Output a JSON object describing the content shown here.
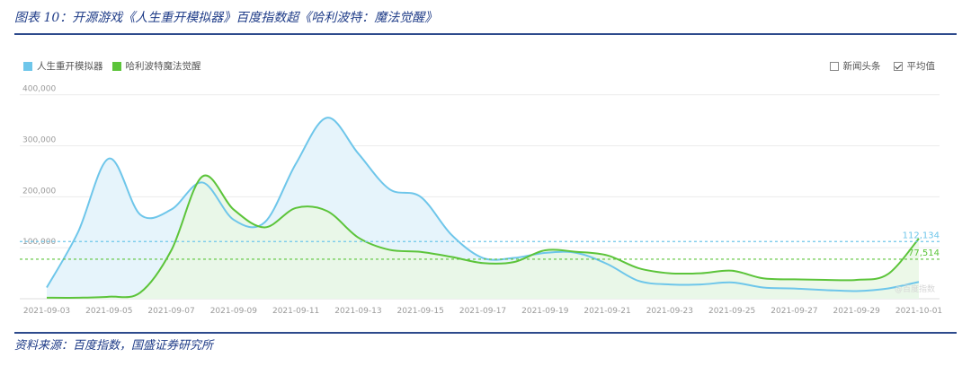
{
  "figure": {
    "title": "图表 10：开源游戏《人生重开模拟器》百度指数超《哈利波特：魔法觉醒》",
    "source": "资料来源：百度指数，国盛证券研究所"
  },
  "controls": {
    "news_label": "新闻头条",
    "news_checked": false,
    "avg_label": "平均值",
    "avg_checked": true
  },
  "watermark": "@百度指数",
  "chart_data": {
    "type": "area",
    "x": [
      "2021-09-03",
      "2021-09-04",
      "2021-09-05",
      "2021-09-06",
      "2021-09-07",
      "2021-09-08",
      "2021-09-09",
      "2021-09-10",
      "2021-09-11",
      "2021-09-12",
      "2021-09-13",
      "2021-09-14",
      "2021-09-15",
      "2021-09-16",
      "2021-09-17",
      "2021-09-18",
      "2021-09-19",
      "2021-09-20",
      "2021-09-21",
      "2021-09-22",
      "2021-09-23",
      "2021-09-24",
      "2021-09-25",
      "2021-09-26",
      "2021-09-27",
      "2021-09-28",
      "2021-09-29",
      "2021-09-30",
      "2021-10-01"
    ],
    "x_ticks": [
      "2021-09-03",
      "2021-09-05",
      "2021-09-07",
      "2021-09-09",
      "2021-09-11",
      "2021-09-13",
      "2021-09-15",
      "2021-09-17",
      "2021-09-19",
      "2021-09-21",
      "2021-09-23",
      "2021-09-25",
      "2021-09-27",
      "2021-09-29",
      "2021-10-01"
    ],
    "y_ticks": [
      100000,
      200000,
      300000,
      400000
    ],
    "y_tick_labels": [
      "100,000",
      "200,000",
      "300,000",
      "400,000"
    ],
    "ylim": [
      0,
      410000
    ],
    "grid": true,
    "legend_position": "top-left",
    "series": [
      {
        "name": "人生重开模拟器",
        "color": "#6ec6ea",
        "fill": "#e6f4fb",
        "values": [
          22000,
          130000,
          275000,
          165000,
          175000,
          228000,
          155000,
          150000,
          265000,
          355000,
          285000,
          215000,
          200000,
          125000,
          80000,
          80000,
          90000,
          90000,
          68000,
          35000,
          28000,
          28000,
          32000,
          22000,
          20000,
          17000,
          15000,
          20000,
          33000
        ],
        "average": 112134,
        "average_label": "112,134"
      },
      {
        "name": "哈利波特魔法觉醒",
        "color": "#5cc43a",
        "fill": "#e9f7e4",
        "values": [
          2000,
          2000,
          4000,
          12000,
          95000,
          240000,
          175000,
          140000,
          178000,
          172000,
          120000,
          96000,
          92000,
          82000,
          70000,
          72000,
          95000,
          92000,
          85000,
          60000,
          50000,
          50000,
          55000,
          40000,
          38000,
          37000,
          37000,
          48000,
          118000
        ],
        "average": 77514,
        "average_label": "77,514"
      }
    ]
  }
}
